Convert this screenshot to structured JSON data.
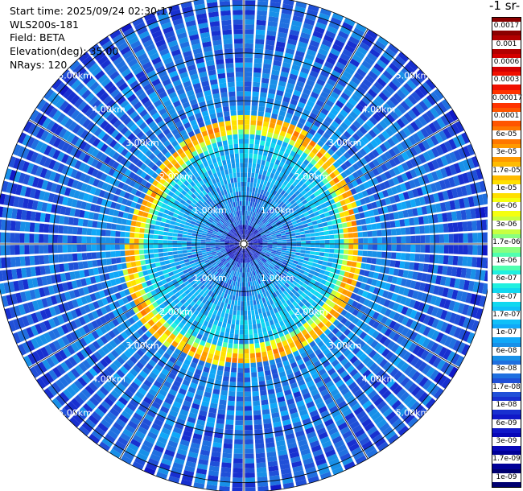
{
  "header": {
    "start_time": "Start time: 2025/09/24 02:30:17",
    "instrument": "WLS200s-181",
    "field": "Field: BETA",
    "elevation": "Elevation(deg): 35.00",
    "nrays": "NRays: 120"
  },
  "colorbar": {
    "title": "-1 sr-",
    "labels": [
      "0.0017",
      "0.001",
      "0.0006",
      "0.0003",
      "0.00017",
      "0.0001",
      "6e-05",
      "3e-05",
      "1.7e-05",
      "1e-05",
      "6e-06",
      "3e-06",
      "1.7e-06",
      "1e-06",
      "6e-07",
      "3e-07",
      "1.7e-07",
      "1e-07",
      "6e-08",
      "3e-08",
      "1.7e-08",
      "1e-08",
      "6e-09",
      "3e-09",
      "1.7e-09",
      "1e-09"
    ],
    "colors": [
      "#8b0000",
      "#b20000",
      "#d40000",
      "#f01000",
      "#ff3300",
      "#ff5500",
      "#ff7700",
      "#ff9900",
      "#ffbb00",
      "#ffe000",
      "#f5ff10",
      "#c8ff40",
      "#88ff80",
      "#50ffb0",
      "#20f0e0",
      "#10d8f0",
      "#10c0f8",
      "#10a8f8",
      "#1890e8",
      "#2070e0",
      "#2050d8",
      "#1830d0",
      "#1018c8",
      "#0808b8",
      "#000098",
      "#000070"
    ]
  },
  "chart_data": {
    "type": "heatmap",
    "projection": "polar-ppi",
    "field": "BETA",
    "elevation_deg": 35.0,
    "n_rays": 120,
    "range_rings_km": [
      1.0,
      2.0,
      3.0,
      4.0,
      5.0
    ],
    "ring_labels": [
      "1.00km",
      "2.00km",
      "3.00km",
      "4.00km",
      "5.00km"
    ],
    "max_range_km": 5.2,
    "scale": "log",
    "value_range": [
      1e-09,
      0.0017
    ],
    "grid": true,
    "colorbar_placement": "right",
    "features": {
      "high_backscatter_ring_km": 2.4,
      "high_backscatter_peak": 1.7e-05,
      "inner_background": 3e-08,
      "outer_background": 6e-08
    }
  }
}
